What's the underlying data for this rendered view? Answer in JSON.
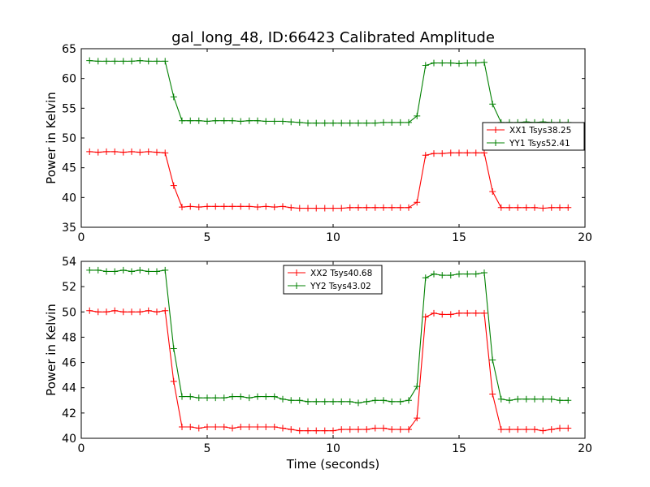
{
  "page": {
    "title": "gal_long_48, ID:66423 Calibrated Amplitude",
    "xlabel": "Time (seconds)"
  },
  "colors": {
    "red": "#ff0000",
    "green": "#008000",
    "axes": "#000000"
  },
  "chart_data": [
    {
      "type": "line",
      "ylabel": "Power in Kelvin",
      "xlim": [
        0,
        20
      ],
      "ylim": [
        35,
        65
      ],
      "xticks": [
        "0",
        "5",
        "10",
        "15",
        "20"
      ],
      "yticks": [
        "35",
        "40",
        "45",
        "50",
        "55",
        "60",
        "65"
      ],
      "legend_position": "center-right",
      "x": [
        0.33,
        0.67,
        1.0,
        1.33,
        1.67,
        2.0,
        2.33,
        2.67,
        3.0,
        3.33,
        3.67,
        4.0,
        4.33,
        4.67,
        5.0,
        5.33,
        5.67,
        6.0,
        6.33,
        6.67,
        7.0,
        7.33,
        7.67,
        8.0,
        8.33,
        8.67,
        9.0,
        9.33,
        9.67,
        10.0,
        10.33,
        10.67,
        11.0,
        11.33,
        11.67,
        12.0,
        12.33,
        12.67,
        13.0,
        13.33,
        13.67,
        14.0,
        14.33,
        14.67,
        15.0,
        15.33,
        15.67,
        16.0,
        16.33,
        16.67,
        17.0,
        17.33,
        17.67,
        18.0,
        18.33,
        18.67,
        19.0,
        19.33
      ],
      "series": [
        {
          "name": "XX1 Tsys38.25",
          "color": "#ff0000",
          "values": [
            47.7,
            47.6,
            47.7,
            47.7,
            47.6,
            47.7,
            47.6,
            47.7,
            47.6,
            47.5,
            42.0,
            38.4,
            38.5,
            38.4,
            38.5,
            38.5,
            38.5,
            38.5,
            38.5,
            38.5,
            38.4,
            38.5,
            38.4,
            38.5,
            38.3,
            38.2,
            38.2,
            38.2,
            38.2,
            38.2,
            38.2,
            38.3,
            38.3,
            38.3,
            38.3,
            38.3,
            38.3,
            38.3,
            38.3,
            39.2,
            47.1,
            47.4,
            47.4,
            47.5,
            47.5,
            47.5,
            47.5,
            47.5,
            41.0,
            38.3,
            38.3,
            38.3,
            38.3,
            38.3,
            38.2,
            38.3,
            38.3,
            38.3
          ]
        },
        {
          "name": "YY1 Tsys52.41",
          "color": "#008000",
          "values": [
            63.0,
            62.9,
            62.9,
            62.9,
            62.9,
            62.9,
            63.0,
            62.9,
            62.9,
            62.9,
            56.9,
            52.9,
            52.9,
            52.9,
            52.8,
            52.9,
            52.9,
            52.9,
            52.8,
            52.9,
            52.9,
            52.8,
            52.8,
            52.8,
            52.7,
            52.6,
            52.5,
            52.5,
            52.5,
            52.5,
            52.5,
            52.5,
            52.5,
            52.5,
            52.5,
            52.6,
            52.6,
            52.6,
            52.6,
            53.7,
            62.2,
            62.6,
            62.6,
            62.6,
            62.5,
            62.6,
            62.6,
            62.7,
            55.7,
            52.6,
            52.6,
            52.6,
            52.7,
            52.6,
            52.7,
            52.6,
            52.6,
            52.6
          ]
        }
      ]
    },
    {
      "type": "line",
      "ylabel": "Power in Kelvin",
      "xlabel": "Time (seconds)",
      "xlim": [
        0,
        20
      ],
      "ylim": [
        40,
        54
      ],
      "xticks": [
        "0",
        "5",
        "10",
        "15",
        "20"
      ],
      "yticks": [
        "40",
        "42",
        "44",
        "46",
        "48",
        "50",
        "52",
        "54"
      ],
      "legend_position": "upper-center",
      "x": [
        0.33,
        0.67,
        1.0,
        1.33,
        1.67,
        2.0,
        2.33,
        2.67,
        3.0,
        3.33,
        3.67,
        4.0,
        4.33,
        4.67,
        5.0,
        5.33,
        5.67,
        6.0,
        6.33,
        6.67,
        7.0,
        7.33,
        7.67,
        8.0,
        8.33,
        8.67,
        9.0,
        9.33,
        9.67,
        10.0,
        10.33,
        10.67,
        11.0,
        11.33,
        11.67,
        12.0,
        12.33,
        12.67,
        13.0,
        13.33,
        13.67,
        14.0,
        14.33,
        14.67,
        15.0,
        15.33,
        15.67,
        16.0,
        16.33,
        16.67,
        17.0,
        17.33,
        17.67,
        18.0,
        18.33,
        18.67,
        19.0,
        19.33
      ],
      "series": [
        {
          "name": "XX2 Tsys40.68",
          "color": "#ff0000",
          "values": [
            50.1,
            50.0,
            50.0,
            50.1,
            50.0,
            50.0,
            50.0,
            50.1,
            50.0,
            50.1,
            44.5,
            40.9,
            40.9,
            40.8,
            40.9,
            40.9,
            40.9,
            40.8,
            40.9,
            40.9,
            40.9,
            40.9,
            40.9,
            40.8,
            40.7,
            40.6,
            40.6,
            40.6,
            40.6,
            40.6,
            40.7,
            40.7,
            40.7,
            40.7,
            40.8,
            40.8,
            40.7,
            40.7,
            40.7,
            41.6,
            49.6,
            49.9,
            49.8,
            49.8,
            49.9,
            49.9,
            49.9,
            49.9,
            43.5,
            40.7,
            40.7,
            40.7,
            40.7,
            40.7,
            40.6,
            40.7,
            40.8,
            40.8
          ]
        },
        {
          "name": "YY2 Tsys43.02",
          "color": "#008000",
          "values": [
            53.3,
            53.3,
            53.2,
            53.2,
            53.3,
            53.2,
            53.3,
            53.2,
            53.2,
            53.3,
            47.1,
            43.3,
            43.3,
            43.2,
            43.2,
            43.2,
            43.2,
            43.3,
            43.3,
            43.2,
            43.3,
            43.3,
            43.3,
            43.1,
            43.0,
            43.0,
            42.9,
            42.9,
            42.9,
            42.9,
            42.9,
            42.9,
            42.8,
            42.9,
            43.0,
            43.0,
            42.9,
            42.9,
            43.0,
            44.1,
            52.7,
            53.0,
            52.9,
            52.9,
            53.0,
            53.0,
            53.0,
            53.1,
            46.2,
            43.1,
            43.0,
            43.1,
            43.1,
            43.1,
            43.1,
            43.1,
            43.0,
            43.0
          ]
        }
      ]
    }
  ]
}
